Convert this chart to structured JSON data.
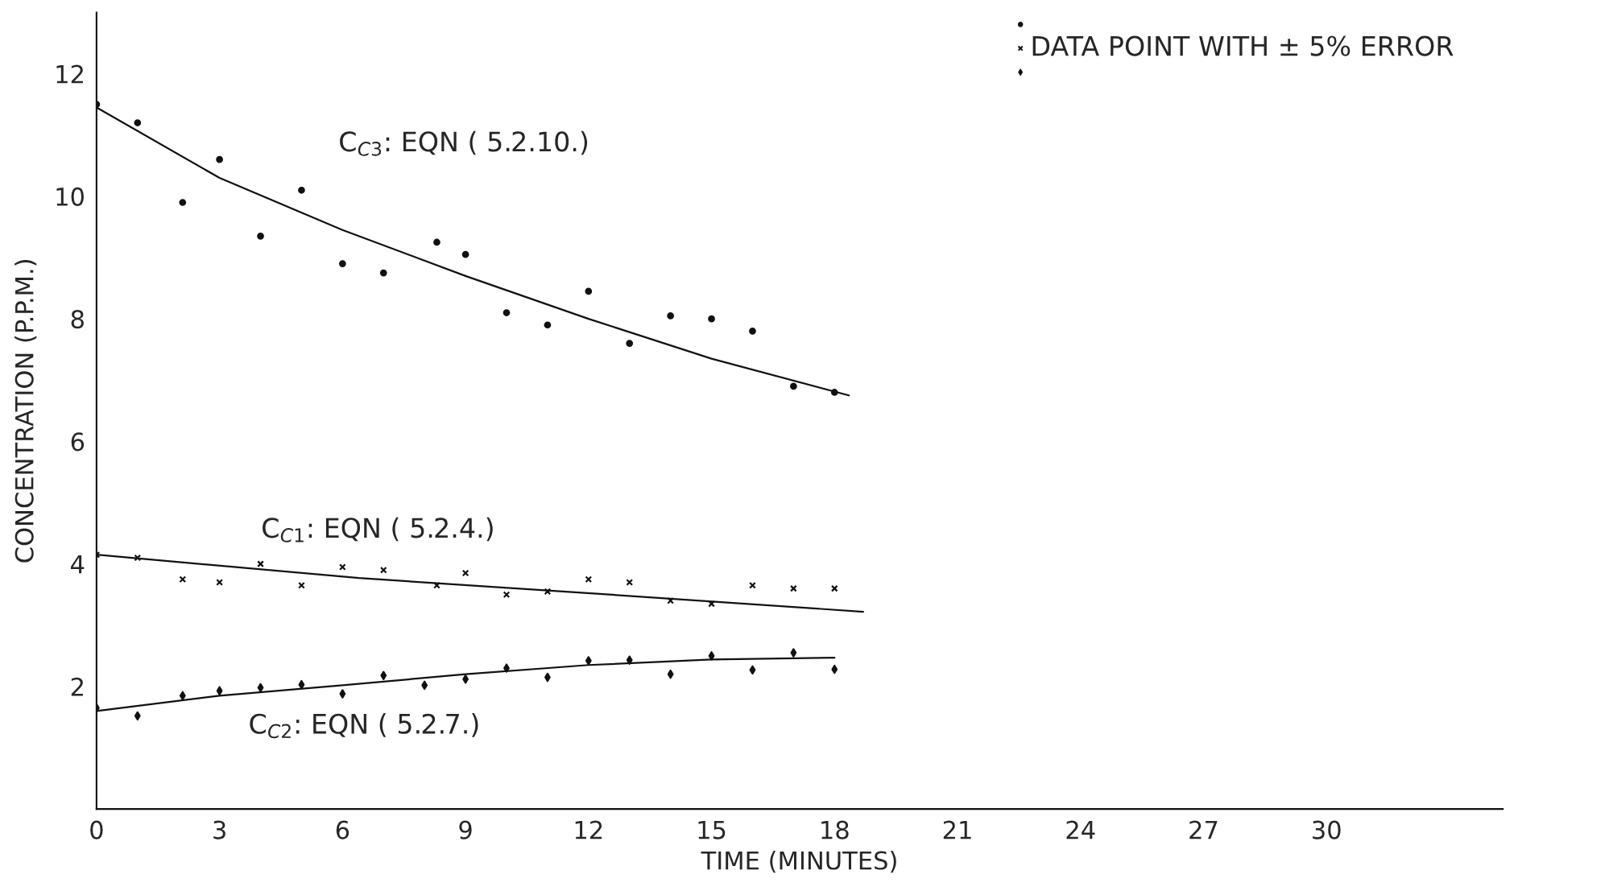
{
  "chart_data": {
    "type": "scatter",
    "xlabel": "TIME (MINUTES)",
    "ylabel": "CONCENTRATION (P.P.M.)",
    "xlim": [
      0,
      34.3
    ],
    "ylim": [
      0,
      13
    ],
    "xticks": [
      0,
      3,
      6,
      9,
      12,
      15,
      18,
      21,
      24,
      27,
      30
    ],
    "yticks": [
      2,
      4,
      6,
      8,
      10,
      12
    ],
    "grid": false,
    "legend": false,
    "series": [
      {
        "marker": "circle",
        "color": "#111111",
        "x": [
          0,
          1,
          2.1,
          3,
          4,
          5,
          6,
          7,
          8.3,
          9,
          10,
          11,
          12,
          13,
          14,
          15,
          16,
          17,
          18
        ],
        "values": [
          11.5,
          11.2,
          9.9,
          10.6,
          9.35,
          10.1,
          8.9,
          8.75,
          9.25,
          9.05,
          8.1,
          7.9,
          8.45,
          7.6,
          8.05,
          8.0,
          7.8,
          6.9,
          6.8
        ]
      },
      {
        "marker": "cross",
        "color": "#111111",
        "x": [
          0,
          1,
          2.1,
          3,
          4,
          5,
          6,
          7,
          8.3,
          9,
          10,
          11,
          12,
          13,
          14,
          15,
          16,
          17,
          18
        ],
        "values": [
          4.15,
          4.1,
          3.75,
          3.7,
          4.0,
          3.65,
          3.95,
          3.9,
          3.65,
          3.85,
          3.5,
          3.55,
          3.75,
          3.7,
          3.4,
          3.35,
          3.65,
          3.6,
          3.6
        ]
      },
      {
        "marker": "diamond",
        "color": "#111111",
        "x": [
          0,
          1,
          2.1,
          3,
          4,
          5,
          6,
          7,
          8,
          9,
          10,
          11,
          12,
          13,
          14,
          15,
          16,
          17,
          18
        ],
        "values": [
          1.65,
          1.52,
          1.85,
          1.93,
          1.98,
          2.03,
          1.88,
          2.18,
          2.02,
          2.12,
          2.3,
          2.15,
          2.42,
          2.43,
          2.2,
          2.5,
          2.27,
          2.55,
          2.28
        ]
      },
      {
        "type": "line",
        "color": "#111111",
        "line_style": "solid",
        "x": [
          0,
          3,
          6,
          9,
          12,
          15,
          18.35
        ],
        "values": [
          11.45,
          10.3,
          9.45,
          8.7,
          8.0,
          7.35,
          6.75
        ]
      },
      {
        "type": "line",
        "color": "#111111",
        "line_style": "solid",
        "x": [
          0,
          6.4,
          12.5,
          18.7
        ],
        "values": [
          4.15,
          3.77,
          3.5,
          3.22
        ]
      },
      {
        "type": "line",
        "color": "#111111",
        "line_style": "solid",
        "x": [
          0,
          3,
          6,
          9,
          12,
          15,
          18
        ],
        "values": [
          1.6,
          1.85,
          2.02,
          2.2,
          2.35,
          2.44,
          2.47
        ]
      }
    ],
    "annotations": [
      "C$_{C3}$: EQN ( 5.2.10.)",
      "C$_{C1}$: EQN ( 5.2.4.)",
      "C$_{C2}$: EQN ( 5.2.7.)",
      "DATA POINT WITH ± 5% ERROR"
    ]
  }
}
